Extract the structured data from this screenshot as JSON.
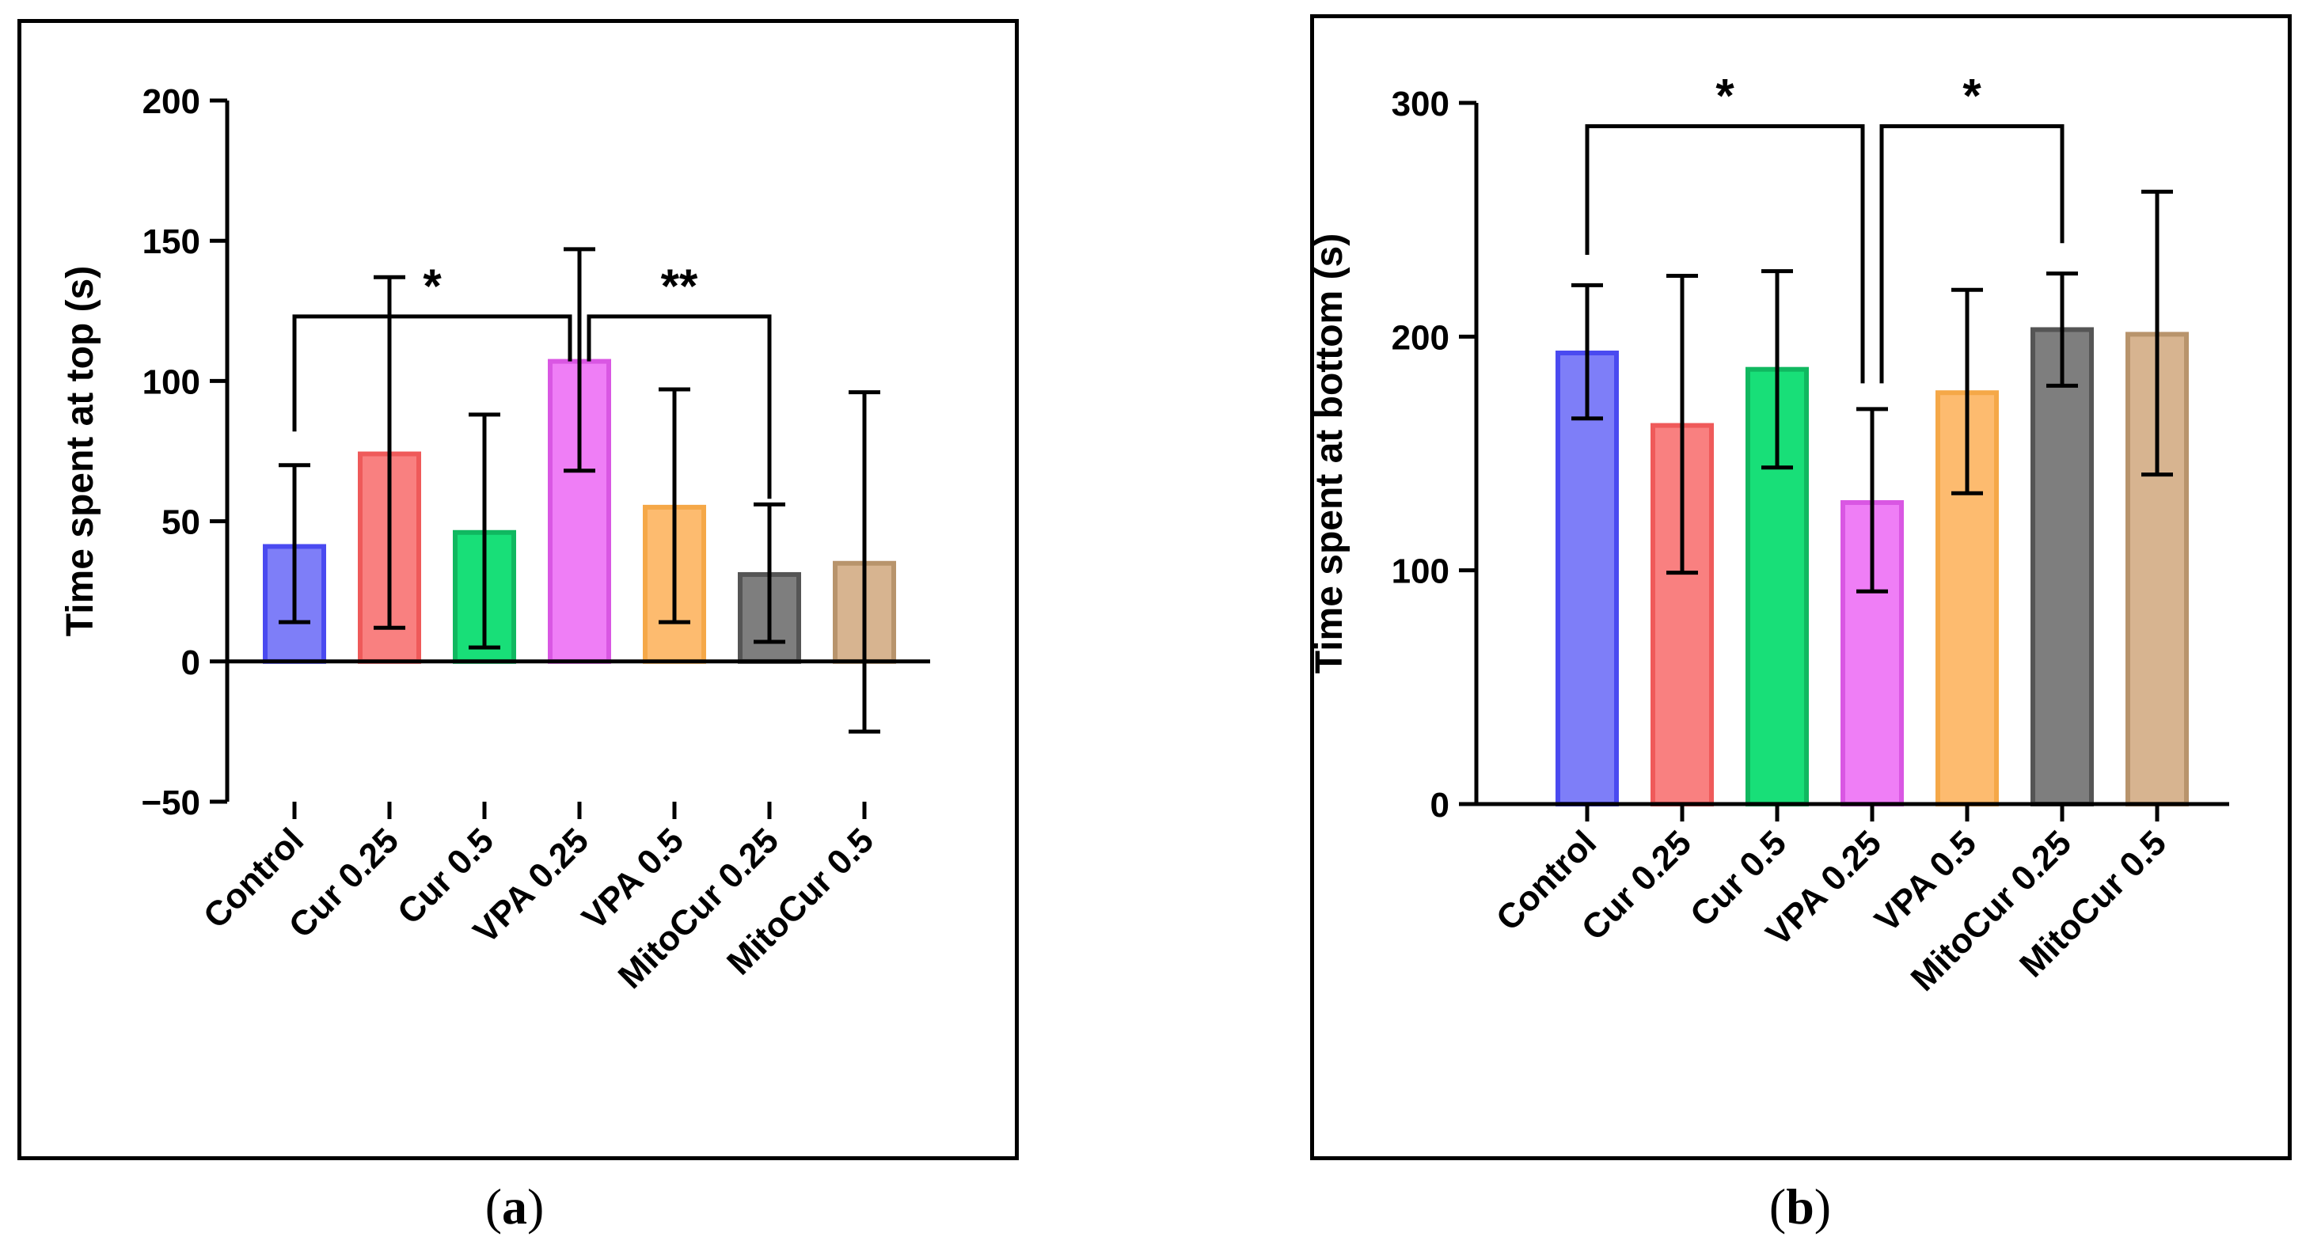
{
  "chart_data": [
    {
      "panel": "a",
      "type": "bar",
      "ylabel": "Time spent at top (s)",
      "categories": [
        "Control",
        "Cur 0.25",
        "Cur 0.5",
        "VPA 0.25",
        "VPA 0.5",
        "MitoCur 0.25",
        "MitoCur 0.5"
      ],
      "values": [
        41,
        74,
        46,
        107,
        55,
        31,
        35
      ],
      "error_upper": [
        70,
        137,
        88,
        147,
        97,
        56,
        96
      ],
      "error_lower": [
        14,
        12,
        5,
        68,
        14,
        7,
        -25
      ],
      "colors": [
        "#7e7ef8",
        "#f98080",
        "#18df78",
        "#ef7ef6",
        "#fdbb6f",
        "#7e7e7e",
        "#d7b490"
      ],
      "edge_colors": [
        "#4a4af0",
        "#ef5a5a",
        "#10b860",
        "#d957e3",
        "#f5a848",
        "#555555",
        "#b8946c"
      ],
      "yticks": [
        -50,
        0,
        50,
        100,
        150,
        200
      ],
      "ytick_labels": [
        "−50",
        "0",
        "50",
        "100",
        "150",
        "200"
      ],
      "ylim": [
        -50,
        200
      ],
      "significance": [
        {
          "from": 0,
          "to": 3,
          "label": "*",
          "y_level": 123,
          "left_drop": 82,
          "right_drop": 107
        },
        {
          "from": 3,
          "to": 5,
          "label": "**",
          "y_level": 123,
          "left_drop": 107,
          "right_drop": 58
        }
      ],
      "panel_label": "(a)",
      "panel_letter": "a"
    },
    {
      "panel": "b",
      "type": "bar",
      "ylabel": "Time spent at bottom (s)",
      "categories": [
        "Control",
        "Cur 0.25",
        "Cur 0.5",
        "VPA 0.25",
        "VPA 0.5",
        "MitoCur 0.25",
        "MitoCur 0.5"
      ],
      "values": [
        193,
        162,
        186,
        129,
        176,
        203,
        201
      ],
      "error_upper": [
        222,
        226,
        228,
        169,
        220,
        227,
        262
      ],
      "error_lower": [
        165,
        99,
        144,
        91,
        133,
        179,
        141
      ],
      "colors": [
        "#7e7ef8",
        "#f98080",
        "#18df78",
        "#ef7ef6",
        "#fdbb6f",
        "#7e7e7e",
        "#d7b490"
      ],
      "edge_colors": [
        "#4a4af0",
        "#ef5a5a",
        "#10b860",
        "#d957e3",
        "#f5a848",
        "#555555",
        "#b8946c"
      ],
      "yticks": [
        0,
        100,
        200,
        300
      ],
      "ytick_labels": [
        "0",
        "100",
        "200",
        "300"
      ],
      "ylim": [
        0,
        300
      ],
      "significance": [
        {
          "from": 0,
          "to": 3,
          "label": "*",
          "y_level": 290,
          "left_drop": 235,
          "right_drop": 180
        },
        {
          "from": 3,
          "to": 5,
          "label": "*",
          "y_level": 290,
          "left_drop": 180,
          "right_drop": 240
        }
      ],
      "panel_label": "(b)",
      "panel_letter": "b"
    }
  ]
}
